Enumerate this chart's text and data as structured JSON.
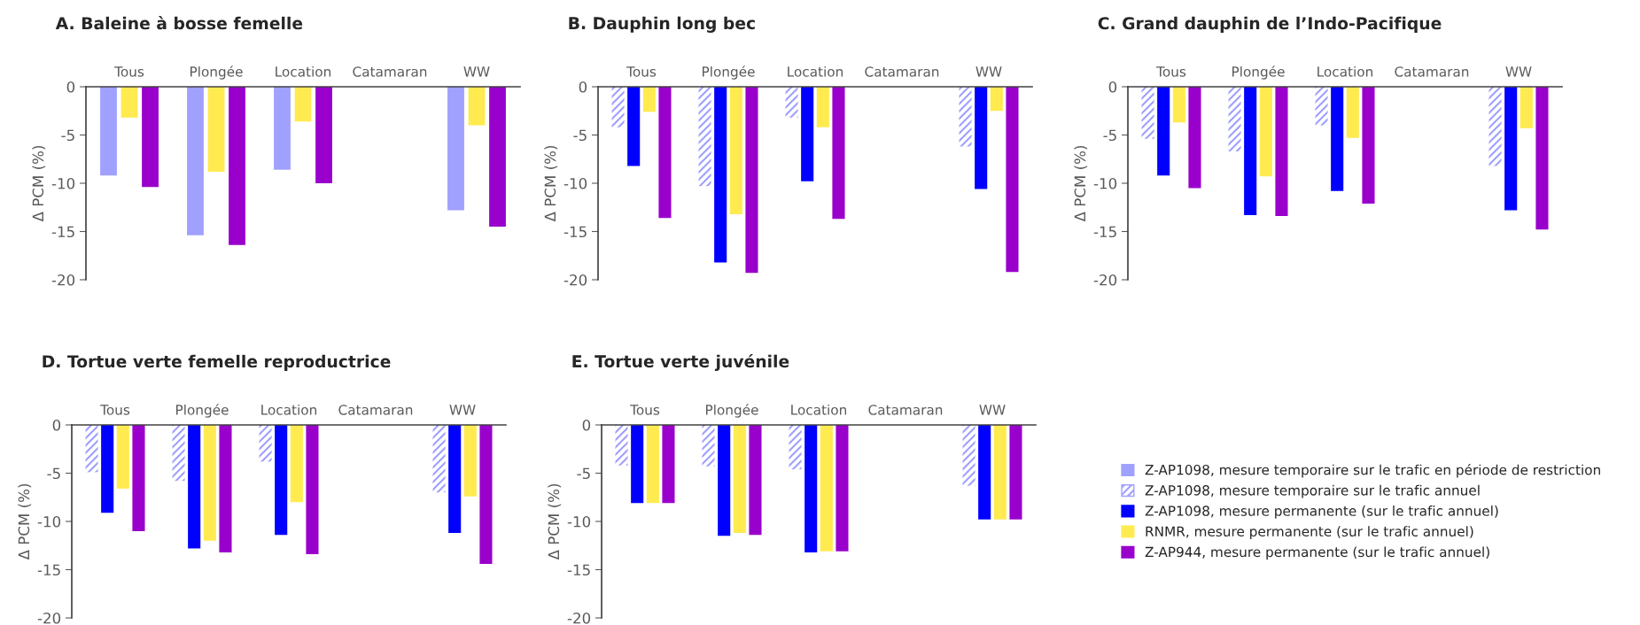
{
  "chart_data": [
    {
      "type": "bar",
      "title": "A. Baleine à bosse femelle",
      "ylabel": "Δ PCM (%)",
      "categories": [
        "Tous",
        "Plongée",
        "Location",
        "Catamaran",
        "WW"
      ],
      "ylim": [
        -20,
        0
      ],
      "yticks": [
        -20,
        -15,
        -10,
        -5,
        0
      ],
      "grid": false,
      "legend": false,
      "series": [
        {
          "color": "#a0a0ff",
          "values": [
            -9.2,
            -15.4,
            -8.6,
            null,
            -12.8
          ]
        },
        {
          "color": "#ffeb50",
          "values": [
            -3.2,
            -8.8,
            -3.6,
            null,
            -4.0
          ]
        },
        {
          "color": "#9900cc",
          "values": [
            -10.4,
            -16.4,
            -10.0,
            null,
            -14.5
          ]
        }
      ]
    },
    {
      "type": "bar",
      "title": "B. Dauphin long bec",
      "ylabel": "Δ PCM (%)",
      "categories": [
        "Tous",
        "Plongée",
        "Location",
        "Catamaran",
        "WW"
      ],
      "ylim": [
        -20,
        0
      ],
      "yticks": [
        -20,
        -15,
        -10,
        -5,
        0
      ],
      "grid": false,
      "legend": false,
      "series": [
        {
          "color": "#a0a0ff",
          "line_style": "dashed",
          "values": [
            -4.2,
            -10.3,
            -3.2,
            null,
            -6.2
          ]
        },
        {
          "color": "#0000ff",
          "values": [
            -8.2,
            -18.2,
            -9.8,
            null,
            -10.6
          ]
        },
        {
          "color": "#ffeb50",
          "values": [
            -2.6,
            -13.2,
            -4.2,
            null,
            -2.5
          ]
        },
        {
          "color": "#9900cc",
          "values": [
            -13.6,
            -19.3,
            -13.7,
            null,
            -19.2
          ]
        }
      ]
    },
    {
      "type": "bar",
      "title": "C. Grand dauphin de l’Indo-Pacifique",
      "ylabel": "Δ PCM (%)",
      "categories": [
        "Tous",
        "Plongée",
        "Location",
        "Catamaran",
        "WW"
      ],
      "ylim": [
        -20,
        0
      ],
      "yticks": [
        -20,
        -15,
        -10,
        -5,
        0
      ],
      "grid": false,
      "legend": false,
      "series": [
        {
          "color": "#a0a0ff",
          "line_style": "dashed",
          "values": [
            -5.4,
            -6.7,
            -4.0,
            null,
            -8.2
          ]
        },
        {
          "color": "#0000ff",
          "values": [
            -9.2,
            -13.3,
            -10.8,
            null,
            -12.8
          ]
        },
        {
          "color": "#ffeb50",
          "values": [
            -3.7,
            -9.3,
            -5.3,
            null,
            -4.3
          ]
        },
        {
          "color": "#9900cc",
          "values": [
            -10.5,
            -13.4,
            -12.1,
            null,
            -14.8
          ]
        }
      ]
    },
    {
      "type": "bar",
      "title": "D. Tortue verte femelle reproductrice",
      "ylabel": "Δ PCM (%)",
      "categories": [
        "Tous",
        "Plongée",
        "Location",
        "Catamaran",
        "WW"
      ],
      "ylim": [
        -20,
        0
      ],
      "yticks": [
        -20,
        -15,
        -10,
        -5,
        0
      ],
      "grid": false,
      "legend": false,
      "series": [
        {
          "color": "#a0a0ff",
          "line_style": "dashed",
          "values": [
            -4.9,
            -5.8,
            -3.8,
            null,
            -7.0
          ]
        },
        {
          "color": "#0000ff",
          "values": [
            -9.1,
            -12.8,
            -11.4,
            null,
            -11.2
          ]
        },
        {
          "color": "#ffeb50",
          "values": [
            -6.6,
            -12.0,
            -8.0,
            null,
            -7.4
          ]
        },
        {
          "color": "#9900cc",
          "values": [
            -11.0,
            -13.2,
            -13.4,
            null,
            -14.4
          ]
        }
      ]
    },
    {
      "type": "bar",
      "title": "E. Tortue verte juvénile",
      "ylabel": "Δ PCM (%)",
      "categories": [
        "Tous",
        "Plongée",
        "Location",
        "Catamaran",
        "WW"
      ],
      "ylim": [
        -20,
        0
      ],
      "yticks": [
        -20,
        -15,
        -10,
        -5,
        0
      ],
      "grid": false,
      "legend": "right",
      "series": [
        {
          "name": "Z-AP1098, mesure temporaire sur le trafic en période de restriction",
          "color": "#a0a0ff",
          "values": [
            null,
            null,
            null,
            null,
            null
          ]
        },
        {
          "name": "Z-AP1098, mesure temporaire sur le trafic annuel",
          "color": "#a0a0ff",
          "line_style": "dashed",
          "values": [
            -4.2,
            -4.3,
            -4.6,
            null,
            -6.3
          ]
        },
        {
          "name": "Z-AP1098, mesure permanente (sur le trafic annuel)",
          "color": "#0000ff",
          "values": [
            -8.1,
            -11.5,
            -13.2,
            null,
            -9.8
          ]
        },
        {
          "name": "RNMR, mesure permanente (sur le trafic annuel)",
          "color": "#ffeb50",
          "values": [
            -8.1,
            -11.2,
            -13.1,
            null,
            -9.8
          ]
        },
        {
          "name": "Z-AP944, mesure permanente (sur le trafic annuel)",
          "color": "#9900cc",
          "values": [
            -8.1,
            -11.4,
            -13.1,
            null,
            -9.8
          ]
        }
      ]
    }
  ]
}
